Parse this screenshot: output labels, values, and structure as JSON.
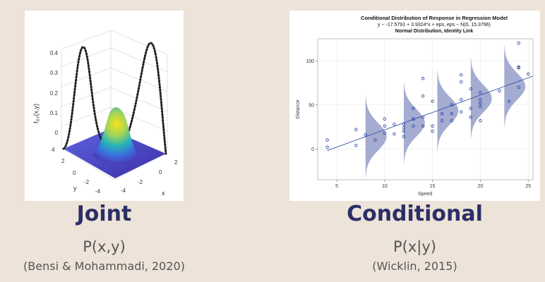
{
  "left": {
    "caption": "Joint",
    "formula": "P(x,y)",
    "citation": "(Bensi & Mohammadi, 2020)",
    "figure": {
      "zlabel": "f",
      "zlabel_sub": "XY",
      "zlabel_args": "(x,y)",
      "xlabel": "x",
      "ylabel": "y",
      "z_ticks": [
        "0",
        "0.1",
        "0.2",
        "0.3",
        "0.4"
      ],
      "x_ticks": [
        "-4",
        "-2",
        "0",
        "2"
      ],
      "y_ticks": [
        "4",
        "2",
        "0",
        "-2",
        "-4"
      ]
    }
  },
  "right": {
    "caption": "Conditional",
    "formula": "P(x|y)",
    "citation": "(Wicklin, 2015)"
  },
  "chart_data": {
    "type": "scatter",
    "title": "Conditional Distribution of Response in Regression Model",
    "subtitle": "y ~ -17.5791 + 3.9324*x + eps, eps ~ N(0, 15.3796)",
    "subtitle2": "Normal Distribution, Identity Link",
    "xlabel": "Speed",
    "ylabel": "Distance",
    "xlim": [
      3,
      25.5
    ],
    "ylim": [
      -35,
      125
    ],
    "x_ticks": [
      5,
      10,
      15,
      20,
      25
    ],
    "y_ticks": [
      0,
      50,
      100
    ],
    "regression": {
      "intercept": -17.5791,
      "slope": 3.9324,
      "sigma": 15.3796
    },
    "density_at_x": [
      8,
      12,
      15.5,
      19,
      22.5
    ],
    "points": [
      {
        "x": 4,
        "y": 2
      },
      {
        "x": 4,
        "y": 10
      },
      {
        "x": 7,
        "y": 4
      },
      {
        "x": 7,
        "y": 22
      },
      {
        "x": 8,
        "y": 16
      },
      {
        "x": 9,
        "y": 10
      },
      {
        "x": 10,
        "y": 18
      },
      {
        "x": 10,
        "y": 26
      },
      {
        "x": 10,
        "y": 34
      },
      {
        "x": 11,
        "y": 17
      },
      {
        "x": 11,
        "y": 28
      },
      {
        "x": 12,
        "y": 14
      },
      {
        "x": 12,
        "y": 20
      },
      {
        "x": 12,
        "y": 24
      },
      {
        "x": 12,
        "y": 28
      },
      {
        "x": 13,
        "y": 26
      },
      {
        "x": 13,
        "y": 34
      },
      {
        "x": 13,
        "y": 34
      },
      {
        "x": 13,
        "y": 46
      },
      {
        "x": 14,
        "y": 26
      },
      {
        "x": 14,
        "y": 36
      },
      {
        "x": 14,
        "y": 60
      },
      {
        "x": 14,
        "y": 80
      },
      {
        "x": 15,
        "y": 20
      },
      {
        "x": 15,
        "y": 26
      },
      {
        "x": 15,
        "y": 54
      },
      {
        "x": 16,
        "y": 32
      },
      {
        "x": 16,
        "y": 40
      },
      {
        "x": 17,
        "y": 32
      },
      {
        "x": 17,
        "y": 40
      },
      {
        "x": 17,
        "y": 50
      },
      {
        "x": 18,
        "y": 42
      },
      {
        "x": 18,
        "y": 56
      },
      {
        "x": 18,
        "y": 76
      },
      {
        "x": 18,
        "y": 84
      },
      {
        "x": 19,
        "y": 36
      },
      {
        "x": 19,
        "y": 46
      },
      {
        "x": 19,
        "y": 68
      },
      {
        "x": 20,
        "y": 32
      },
      {
        "x": 20,
        "y": 48
      },
      {
        "x": 20,
        "y": 52
      },
      {
        "x": 20,
        "y": 56
      },
      {
        "x": 20,
        "y": 64
      },
      {
        "x": 22,
        "y": 66
      },
      {
        "x": 23,
        "y": 54
      },
      {
        "x": 24,
        "y": 70
      },
      {
        "x": 24,
        "y": 92
      },
      {
        "x": 24,
        "y": 93
      },
      {
        "x": 24,
        "y": 120
      },
      {
        "x": 25,
        "y": 85
      }
    ]
  }
}
